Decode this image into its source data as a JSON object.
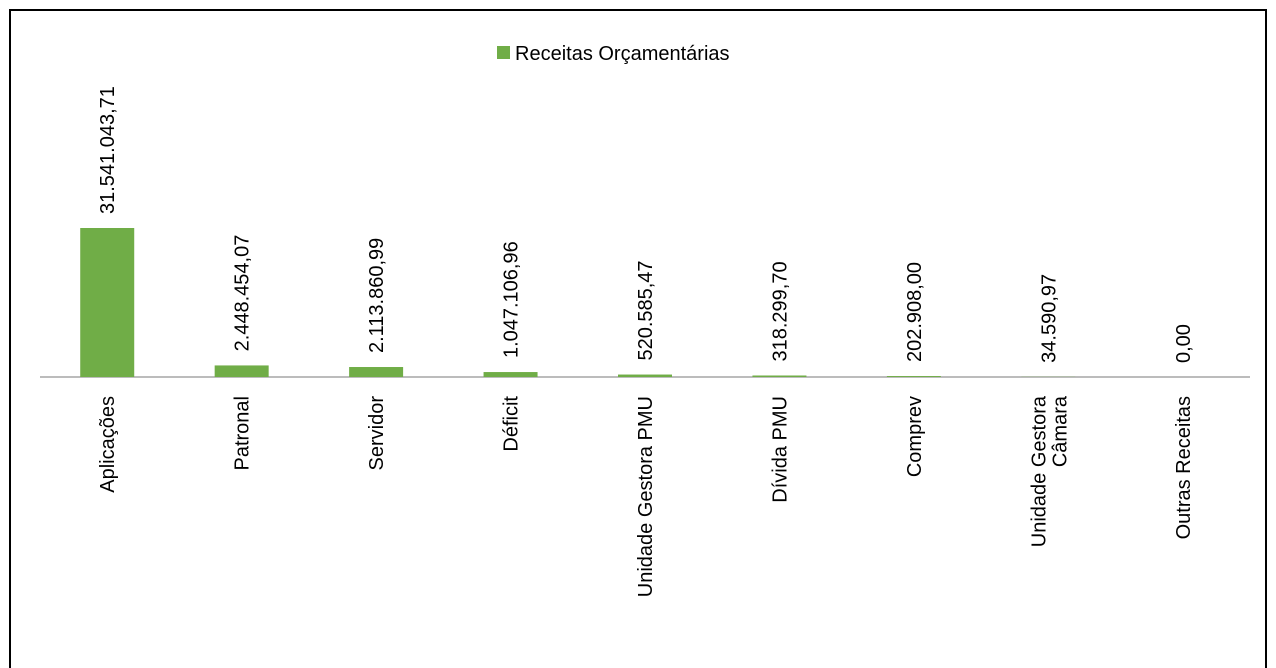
{
  "chart_data": {
    "type": "bar",
    "categories": [
      "Aplicações",
      "Patronal",
      "Servidor",
      "Déficit",
      "Unidade Gestora PMU",
      "Dívida PMU",
      "Comprev",
      "Unidade Gestora Câmara",
      "Outras Receitas"
    ],
    "series": [
      {
        "name": "Receitas Orçamentárias",
        "color": "#70ad47",
        "values": [
          31541043.71,
          2448454.07,
          2113860.99,
          1047106.96,
          520585.47,
          318299.7,
          202908.0,
          34590.97,
          0.0
        ],
        "value_labels": [
          "31.541.043,71",
          "2.448.454,07",
          "2.113.860,99",
          "1.047.106,96",
          "520.585,47",
          "318.299,70",
          "202.908,00",
          "34.590,97",
          "0,00"
        ]
      }
    ],
    "legend": "top"
  }
}
